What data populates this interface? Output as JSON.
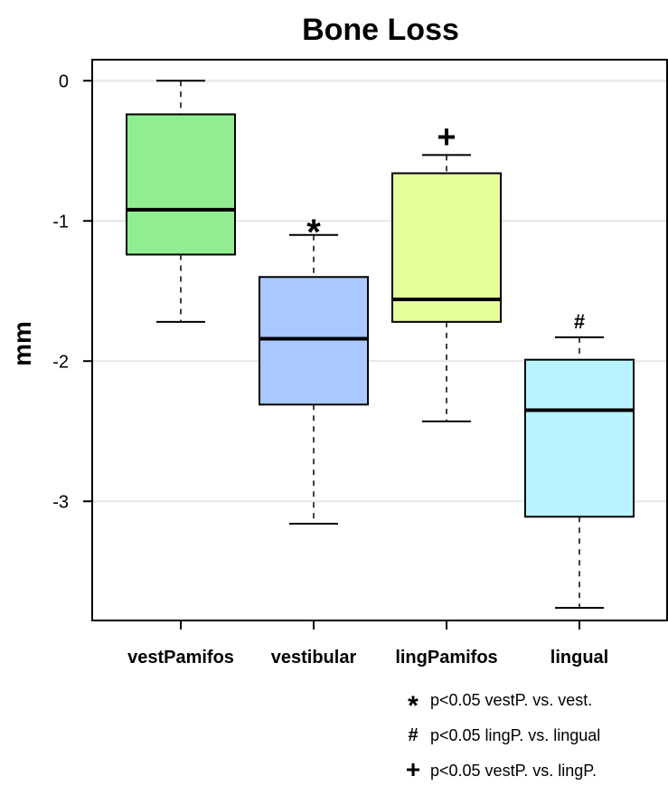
{
  "chart_data": {
    "type": "boxplot",
    "title": "Bone Loss",
    "xlabel": "",
    "ylabel": "mm",
    "ylim": [
      -3.85,
      0.15
    ],
    "yticks": [
      0,
      -1,
      -2,
      -3
    ],
    "grid": true,
    "categories": [
      "vestPamifos",
      "vestibular",
      "lingPamifos",
      "lingual"
    ],
    "boxes": [
      {
        "category": "vestPamifos",
        "whisker_high": 0.0,
        "q3": -0.24,
        "median": -0.92,
        "q1": -1.24,
        "whisker_low": -1.72,
        "color": "#90ee90",
        "marker": ""
      },
      {
        "category": "vestibular",
        "whisker_high": -1.1,
        "q3": -1.4,
        "median": -1.84,
        "q1": -2.31,
        "whisker_low": -3.16,
        "color": "#a8c8ff",
        "marker": "*"
      },
      {
        "category": "lingPamifos",
        "whisker_high": -0.53,
        "q3": -0.66,
        "median": -1.56,
        "q1": -1.72,
        "whisker_low": -2.43,
        "color": "#e6ff99",
        "marker": "+"
      },
      {
        "category": "lingual",
        "whisker_high": -1.83,
        "q3": -1.99,
        "median": -2.35,
        "q1": -3.11,
        "whisker_low": -3.76,
        "color": "#b8f4ff",
        "marker": "#"
      }
    ],
    "legend": [
      {
        "symbol": "*",
        "text": "p<0.05 vestP. vs. vest."
      },
      {
        "symbol": "#",
        "text": "p<0.05 lingP. vs. lingual"
      },
      {
        "symbol": "+",
        "text": "p<0.05 vestP. vs. lingP."
      }
    ],
    "legend_position": "bottom-right"
  }
}
